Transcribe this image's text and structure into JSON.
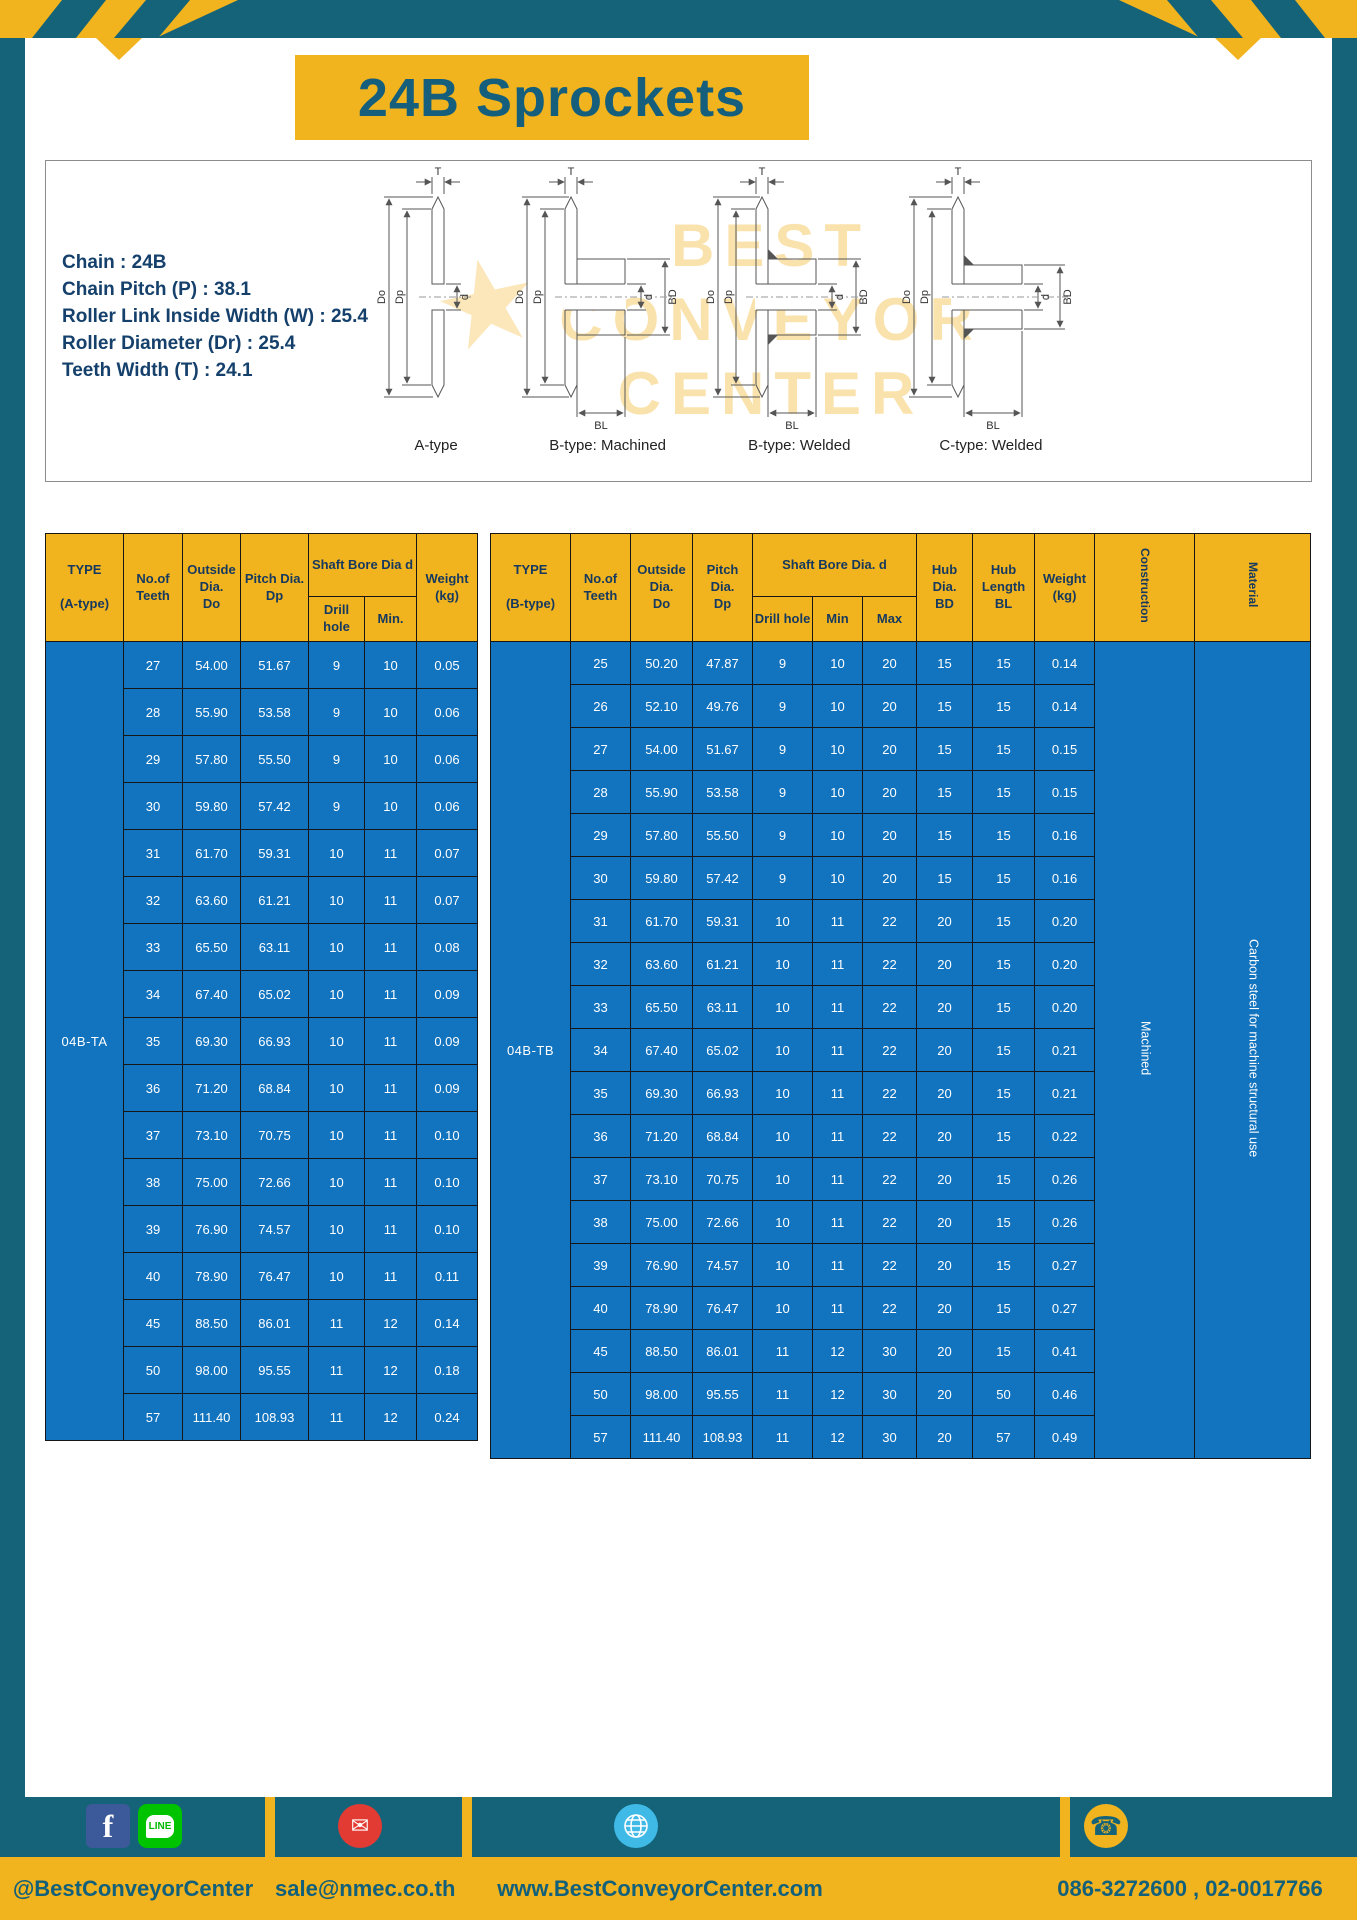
{
  "title": "24B Sprockets",
  "specs": {
    "lines": [
      "Chain : 24B",
      "Chain Pitch (P) : 38.1",
      "Roller Link Inside Width (W) : 25.4",
      "Roller Diameter (Dr) : 25.4",
      "Teeth Width (T) : 24.1"
    ]
  },
  "diagram": {
    "watermark": [
      "BEST",
      "CONVEYOR",
      "CENTER"
    ],
    "star_glyph": "★",
    "types": [
      "A-type",
      "B-type: Machined",
      "B-type: Welded",
      "C-type: Welded"
    ],
    "dims": {
      "t": "T",
      "outside": "Do",
      "pitch": "Dp",
      "bore": "d",
      "hub_dia": "BD",
      "hub_len": "BL"
    }
  },
  "table_a": {
    "type_label": "04B-TA",
    "headers": {
      "type": "TYPE\n\n(A-type)",
      "teeth": "No.of\nTeeth",
      "outside": "Outside\nDia.\nDo",
      "pitch": "Pitch Dia.\nDp",
      "shaft_bore": "Shaft Bore Dia d",
      "drill": "Drill hole",
      "min": "Min.",
      "weight": "Weight\n(kg)"
    },
    "rows": [
      [
        "27",
        "54.00",
        "51.67",
        "9",
        "10",
        "0.05"
      ],
      [
        "28",
        "55.90",
        "53.58",
        "9",
        "10",
        "0.06"
      ],
      [
        "29",
        "57.80",
        "55.50",
        "9",
        "10",
        "0.06"
      ],
      [
        "30",
        "59.80",
        "57.42",
        "9",
        "10",
        "0.06"
      ],
      [
        "31",
        "61.70",
        "59.31",
        "10",
        "11",
        "0.07"
      ],
      [
        "32",
        "63.60",
        "61.21",
        "10",
        "11",
        "0.07"
      ],
      [
        "33",
        "65.50",
        "63.11",
        "10",
        "11",
        "0.08"
      ],
      [
        "34",
        "67.40",
        "65.02",
        "10",
        "11",
        "0.09"
      ],
      [
        "35",
        "69.30",
        "66.93",
        "10",
        "11",
        "0.09"
      ],
      [
        "36",
        "71.20",
        "68.84",
        "10",
        "11",
        "0.09"
      ],
      [
        "37",
        "73.10",
        "70.75",
        "10",
        "11",
        "0.10"
      ],
      [
        "38",
        "75.00",
        "72.66",
        "10",
        "11",
        "0.10"
      ],
      [
        "39",
        "76.90",
        "74.57",
        "10",
        "11",
        "0.10"
      ],
      [
        "40",
        "78.90",
        "76.47",
        "10",
        "11",
        "0.11"
      ],
      [
        "45",
        "88.50",
        "86.01",
        "11",
        "12",
        "0.14"
      ],
      [
        "50",
        "98.00",
        "95.55",
        "11",
        "12",
        "0.18"
      ],
      [
        "57",
        "111.40",
        "108.93",
        "11",
        "12",
        "0.24"
      ]
    ]
  },
  "table_b": {
    "type_label": "04B-TB",
    "construction": "Machined",
    "material": "Carbon steel for machine structural use",
    "headers": {
      "type": "TYPE\n\n(B-type)",
      "teeth": "No.of\nTeeth",
      "outside": "Outside\nDia.\nDo",
      "pitch": "Pitch\nDia.\nDp",
      "shaft_bore": "Shaft Bore Dia.  d",
      "drill": "Drill hole",
      "min": "Min",
      "max": "Max",
      "hub_dia": "Hub\nDia.\nBD",
      "hub_len": "Hub\nLength\nBL",
      "weight": "Weight\n(kg)",
      "construction": "Construction",
      "material": "Material"
    },
    "rows": [
      [
        "25",
        "50.20",
        "47.87",
        "9",
        "10",
        "20",
        "15",
        "15",
        "0.14"
      ],
      [
        "26",
        "52.10",
        "49.76",
        "9",
        "10",
        "20",
        "15",
        "15",
        "0.14"
      ],
      [
        "27",
        "54.00",
        "51.67",
        "9",
        "10",
        "20",
        "15",
        "15",
        "0.15"
      ],
      [
        "28",
        "55.90",
        "53.58",
        "9",
        "10",
        "20",
        "15",
        "15",
        "0.15"
      ],
      [
        "29",
        "57.80",
        "55.50",
        "9",
        "10",
        "20",
        "15",
        "15",
        "0.16"
      ],
      [
        "30",
        "59.80",
        "57.42",
        "9",
        "10",
        "20",
        "15",
        "15",
        "0.16"
      ],
      [
        "31",
        "61.70",
        "59.31",
        "10",
        "11",
        "22",
        "20",
        "15",
        "0.20"
      ],
      [
        "32",
        "63.60",
        "61.21",
        "10",
        "11",
        "22",
        "20",
        "15",
        "0.20"
      ],
      [
        "33",
        "65.50",
        "63.11",
        "10",
        "11",
        "22",
        "20",
        "15",
        "0.20"
      ],
      [
        "34",
        "67.40",
        "65.02",
        "10",
        "11",
        "22",
        "20",
        "15",
        "0.21"
      ],
      [
        "35",
        "69.30",
        "66.93",
        "10",
        "11",
        "22",
        "20",
        "15",
        "0.21"
      ],
      [
        "36",
        "71.20",
        "68.84",
        "10",
        "11",
        "22",
        "20",
        "15",
        "0.22"
      ],
      [
        "37",
        "73.10",
        "70.75",
        "10",
        "11",
        "22",
        "20",
        "15",
        "0.26"
      ],
      [
        "38",
        "75.00",
        "72.66",
        "10",
        "11",
        "22",
        "20",
        "15",
        "0.26"
      ],
      [
        "39",
        "76.90",
        "74.57",
        "10",
        "11",
        "22",
        "20",
        "15",
        "0.27"
      ],
      [
        "40",
        "78.90",
        "76.47",
        "10",
        "11",
        "22",
        "20",
        "15",
        "0.27"
      ],
      [
        "45",
        "88.50",
        "86.01",
        "11",
        "12",
        "30",
        "20",
        "15",
        "0.41"
      ],
      [
        "50",
        "98.00",
        "95.55",
        "11",
        "12",
        "30",
        "20",
        "50",
        "0.46"
      ],
      [
        "57",
        "111.40",
        "108.93",
        "11",
        "12",
        "30",
        "20",
        "57",
        "0.49"
      ]
    ]
  },
  "footer": {
    "items": [
      {
        "label": "@BestConveyorCenter"
      },
      {
        "label": "sale@nmec.co.th"
      },
      {
        "label": "www.BestConveyorCenter.com"
      },
      {
        "label": "086-3272600 , 02-0017766"
      }
    ],
    "icons": {
      "facebook_glyph": "f",
      "line_glyph": "LINE",
      "mail_glyph": "✉",
      "phone_glyph": "☎"
    }
  },
  "colors": {
    "teal": "#146379",
    "yellow": "#F1B31E",
    "table_blue": "#1273BE",
    "header_navy": "#16395F"
  }
}
